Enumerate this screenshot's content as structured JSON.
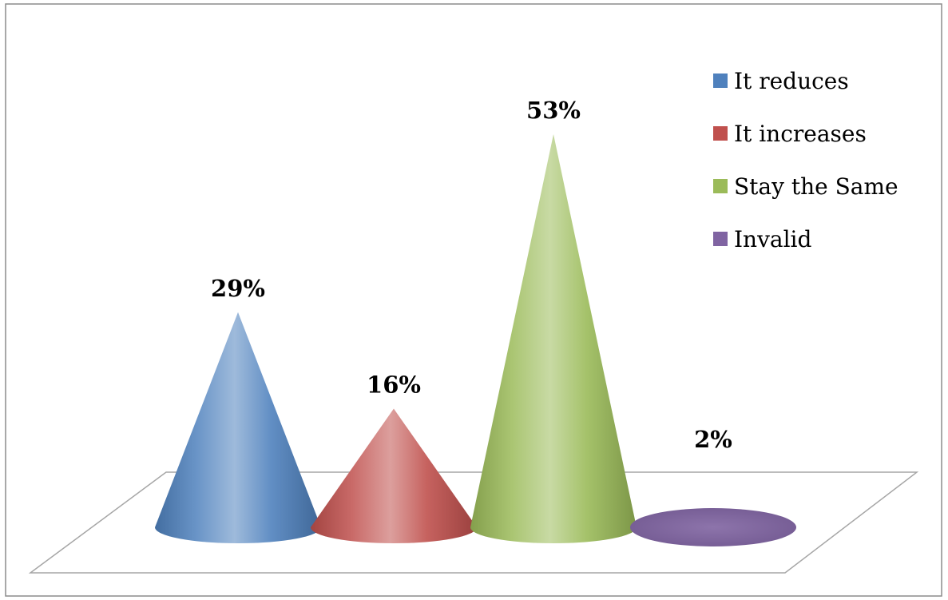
{
  "chart_data": {
    "type": "bar",
    "subtype": "3d-cone",
    "categories": [
      "It reduces",
      "It increases",
      "Stay the Same",
      "Invalid"
    ],
    "values": [
      29,
      16,
      53,
      2
    ],
    "data_labels": [
      "29%",
      "16%",
      "53%",
      "2%"
    ],
    "unit": "%",
    "title": "",
    "xlabel": "",
    "ylabel": "",
    "ylim": [
      0,
      60
    ],
    "grid": false,
    "legend": {
      "position": "top-right",
      "entries": [
        "It reduces",
        "It increases",
        "Stay the Same",
        "Invalid"
      ]
    },
    "colors": [
      "#4F81BD",
      "#C0504D",
      "#9BBB59",
      "#8064A2"
    ]
  }
}
